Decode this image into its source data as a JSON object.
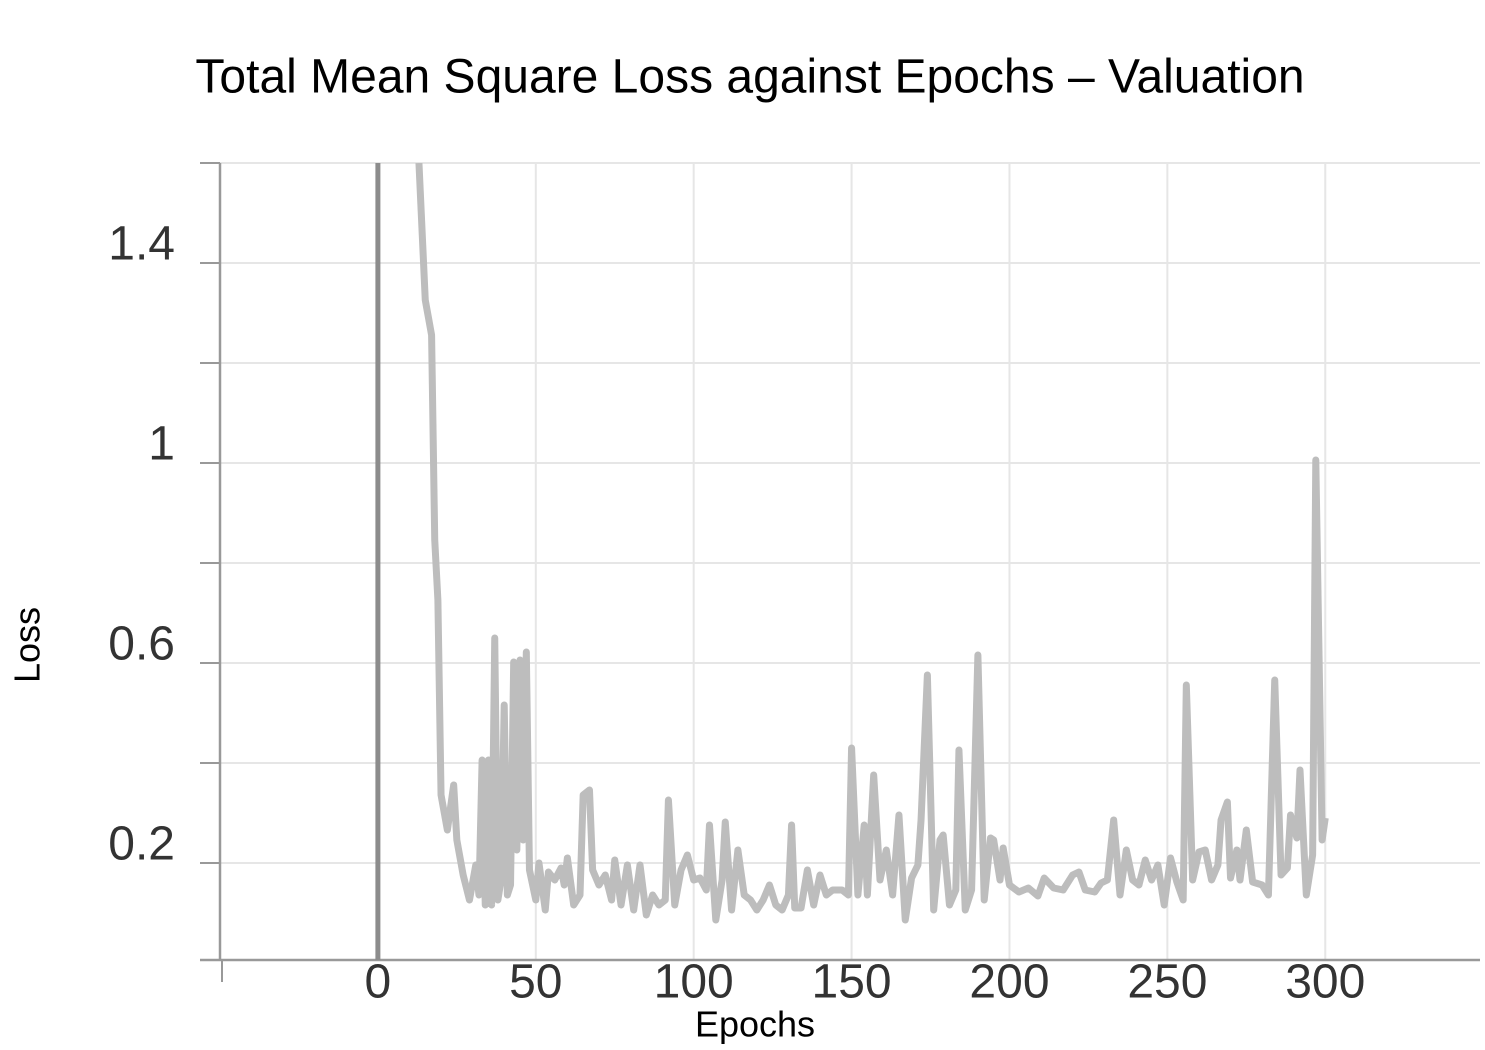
{
  "chart_data": {
    "type": "line",
    "title": "Total Mean Square Loss against Epochs – Valuation",
    "x_label": "Epochs",
    "y_label": "Loss",
    "xlim": [
      -50,
      349
    ],
    "ylim": [
      0.006,
      1.6
    ],
    "xticks": [
      0,
      50,
      100,
      150,
      200,
      250,
      300
    ],
    "yticks": [
      0.2,
      0.6,
      1,
      1.4
    ],
    "minor_yticks": [
      0.4,
      0.8,
      1.2,
      1.6
    ],
    "grid": true,
    "zero_line": true,
    "series": [
      {
        "color": "#bdbdbd",
        "x": [
          13,
          15,
          17,
          18,
          19,
          20,
          22,
          24,
          25,
          27,
          29,
          31,
          32,
          33,
          34,
          35,
          36,
          37,
          38,
          39,
          40,
          41,
          42,
          43,
          44,
          45,
          46,
          47,
          48,
          50,
          51,
          53,
          54,
          56,
          58,
          59,
          60,
          62,
          64,
          65,
          67,
          68,
          70,
          72,
          74,
          75,
          77,
          79,
          81,
          83,
          85,
          87,
          89,
          91,
          92,
          94,
          96,
          98,
          100,
          102,
          104,
          105,
          107,
          109,
          110,
          112,
          114,
          116,
          118,
          120,
          122,
          124,
          126,
          128,
          130,
          131,
          132,
          134,
          136,
          138,
          140,
          142,
          144,
          147,
          149,
          150,
          152,
          154,
          155,
          157,
          159,
          161,
          163,
          165,
          167,
          169,
          171,
          172,
          174,
          176,
          178,
          179,
          181,
          183,
          184,
          186,
          188,
          190,
          192,
          194,
          195,
          197,
          198,
          200,
          203,
          206,
          209,
          211,
          214,
          217,
          220,
          222,
          224,
          227,
          229,
          231,
          233,
          235,
          237,
          239,
          241,
          243,
          245,
          247,
          249,
          251,
          253,
          255,
          256,
          258,
          260,
          262,
          264,
          266,
          267,
          269,
          270,
          272,
          273,
          275,
          277,
          280,
          282,
          284,
          286,
          288,
          289,
          291,
          292,
          294,
          296,
          297,
          299,
          300
        ],
        "values": [
          1.6,
          1.326,
          1.256,
          0.846,
          0.726,
          0.336,
          0.266,
          0.356,
          0.246,
          0.176,
          0.126,
          0.196,
          0.136,
          0.406,
          0.116,
          0.406,
          0.116,
          0.65,
          0.126,
          0.166,
          0.516,
          0.136,
          0.156,
          0.602,
          0.226,
          0.606,
          0.246,
          0.622,
          0.186,
          0.126,
          0.2,
          0.106,
          0.182,
          0.166,
          0.19,
          0.156,
          0.21,
          0.116,
          0.136,
          0.336,
          0.346,
          0.186,
          0.156,
          0.176,
          0.126,
          0.206,
          0.116,
          0.196,
          0.106,
          0.196,
          0.096,
          0.136,
          0.116,
          0.126,
          0.326,
          0.116,
          0.186,
          0.216,
          0.166,
          0.17,
          0.146,
          0.276,
          0.086,
          0.166,
          0.282,
          0.106,
          0.226,
          0.136,
          0.126,
          0.106,
          0.126,
          0.156,
          0.116,
          0.106,
          0.136,
          0.276,
          0.11,
          0.11,
          0.186,
          0.116,
          0.176,
          0.136,
          0.146,
          0.146,
          0.136,
          0.43,
          0.136,
          0.276,
          0.136,
          0.376,
          0.166,
          0.226,
          0.136,
          0.296,
          0.086,
          0.17,
          0.196,
          0.286,
          0.576,
          0.106,
          0.246,
          0.256,
          0.116,
          0.146,
          0.426,
          0.106,
          0.146,
          0.616,
          0.126,
          0.25,
          0.246,
          0.166,
          0.23,
          0.156,
          0.142,
          0.15,
          0.134,
          0.17,
          0.15,
          0.146,
          0.176,
          0.182,
          0.146,
          0.142,
          0.16,
          0.166,
          0.286,
          0.136,
          0.226,
          0.166,
          0.156,
          0.206,
          0.166,
          0.196,
          0.116,
          0.21,
          0.162,
          0.126,
          0.556,
          0.166,
          0.222,
          0.226,
          0.166,
          0.196,
          0.286,
          0.322,
          0.17,
          0.226,
          0.166,
          0.266,
          0.162,
          0.156,
          0.136,
          0.566,
          0.176,
          0.19,
          0.296,
          0.25,
          0.386,
          0.136,
          0.216,
          1.006,
          0.246,
          0.29
        ]
      }
    ]
  }
}
